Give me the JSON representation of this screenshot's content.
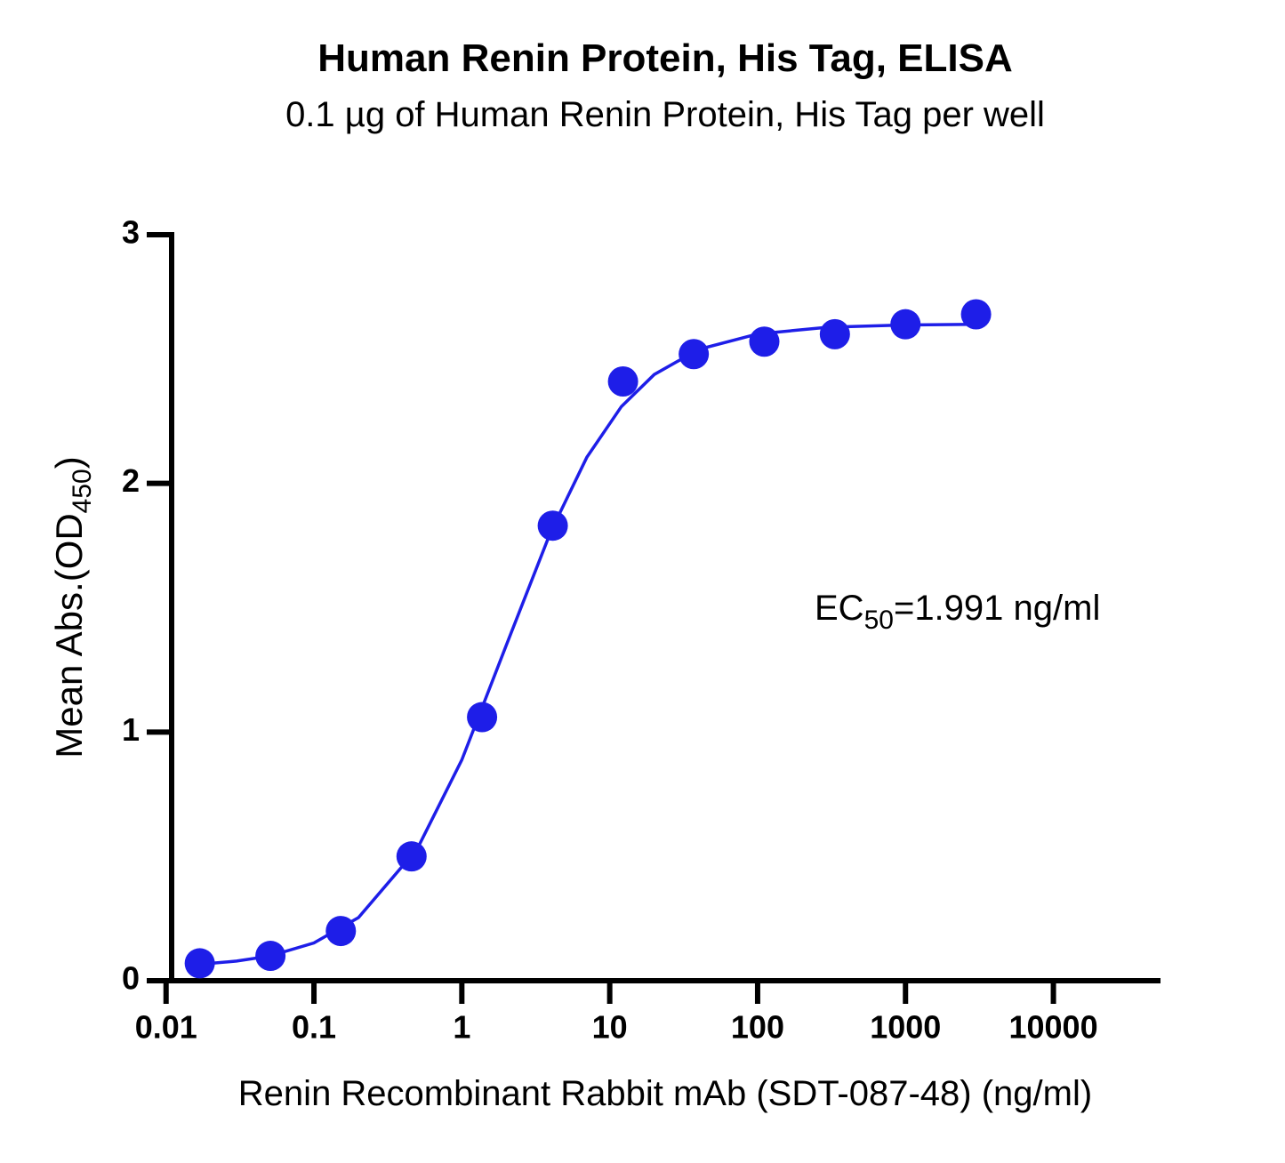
{
  "chart_data": {
    "type": "scatter",
    "title": "Human Renin Protein, His Tag, ELISA",
    "subtitle": "0.1 µg of Human Renin Protein, His Tag per well",
    "xlabel": "Renin Recombinant Rabbit mAb (SDT-087-48) (ng/ml)",
    "ylabel": {
      "text": "Mean Abs.(OD",
      "sub": "450",
      "end": ")"
    },
    "annotation": {
      "text": "EC",
      "sub": "50",
      "end": "=1.991 ng/ml"
    },
    "xscale": "log",
    "xlim": [
      0.0085,
      53000
    ],
    "ylim": [
      0,
      3
    ],
    "xticks": [
      0.01,
      0.1,
      1,
      10,
      100,
      1000,
      10000
    ],
    "yticks": [
      0,
      1,
      2,
      3
    ],
    "color": "#1e1ee8",
    "series": [
      {
        "x": [
          0.0169,
          0.0508,
          0.152,
          0.457,
          1.37,
          4.12,
          12.3,
          37.0,
          111,
          333,
          1000,
          3000
        ],
        "values": [
          0.07,
          0.1,
          0.2,
          0.5,
          1.06,
          1.83,
          2.41,
          2.52,
          2.57,
          2.6,
          2.64,
          2.68
        ]
      }
    ],
    "fit": {
      "x": [
        0.0169,
        0.03,
        0.05,
        0.1,
        0.2,
        0.5,
        1,
        2,
        4,
        7,
        12,
        20,
        40,
        100,
        300,
        1000,
        3000
      ],
      "values": [
        0.066,
        0.079,
        0.099,
        0.152,
        0.254,
        0.531,
        0.888,
        1.35,
        1.807,
        2.105,
        2.309,
        2.438,
        2.539,
        2.601,
        2.628,
        2.637,
        2.64
      ]
    }
  }
}
